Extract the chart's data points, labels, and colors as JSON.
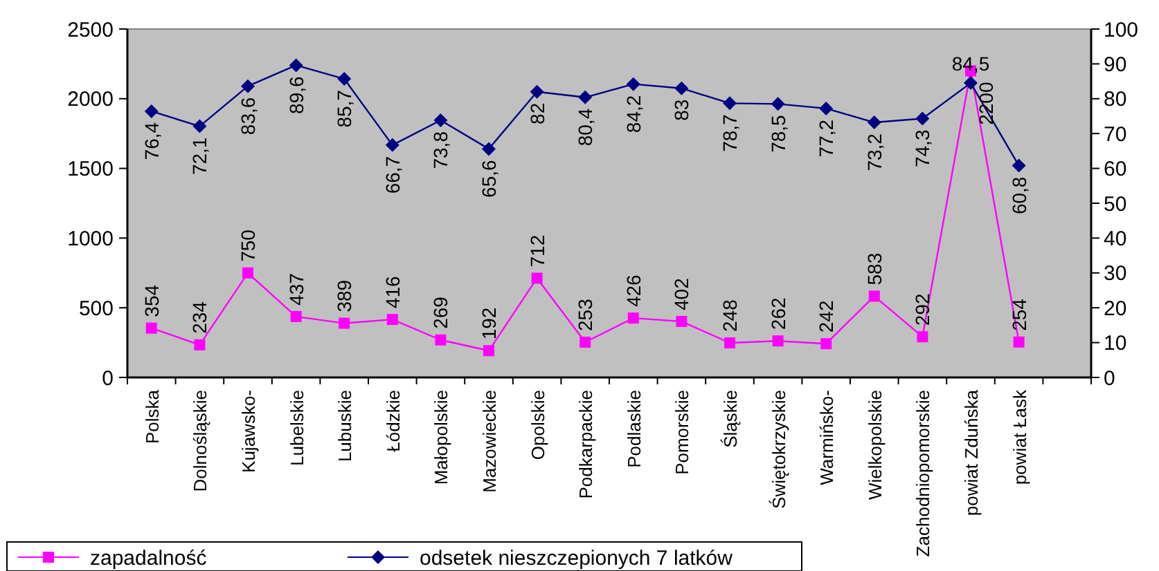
{
  "chart_data": {
    "type": "line",
    "categories": [
      "Polska",
      "Dolnośląskie",
      "Kujawsko-",
      "Lubelskie",
      "Lubuskie",
      "Łódzkie",
      "Małopolskie",
      "Mazowieckie",
      "Opolskie",
      "Podkarpackie",
      "Podlaskie",
      "Pomorskie",
      "Śląskie",
      "Świętokrzyskie",
      "Warmińsko-",
      "Wielkopolskie",
      "Zachodniopomorskie",
      "powiat Zduńska",
      "powiat Łask",
      null
    ],
    "series": [
      {
        "name": "zapadalność",
        "color": "#ff00ff",
        "marker": "square",
        "values": [
          354,
          234,
          750,
          437,
          389,
          416,
          269,
          192,
          712,
          253,
          426,
          402,
          248,
          262,
          242,
          583,
          292,
          2200,
          254,
          null
        ],
        "value_labels": [
          "354",
          "234",
          "750",
          "437",
          "389",
          "416",
          "269",
          "192",
          "712",
          "253",
          "426",
          "402",
          "248",
          "262",
          "242",
          "583",
          "292",
          "2200",
          "254",
          null
        ]
      },
      {
        "name": "odsetek nieszczepionych 7 latków",
        "color": "#000080",
        "marker": "diamond",
        "axis": "y2",
        "values": [
          76.4,
          72.1,
          83.6,
          89.6,
          85.7,
          66.7,
          73.8,
          65.6,
          82,
          80.4,
          84.2,
          83,
          78.7,
          78.5,
          77.2,
          73.2,
          74.3,
          84.5,
          60.8,
          null
        ],
        "value_labels": [
          "76,4",
          "72,1",
          "83,6",
          "89,6",
          "85,7",
          "66,7",
          "73,8",
          "65,6",
          "82",
          "80,4",
          "84,2",
          "83",
          "78,7",
          "78,5",
          "77,2",
          "73,2",
          "74,3",
          "84,5",
          "60,8",
          null
        ]
      }
    ],
    "ylim": [
      0,
      2500
    ],
    "yticks": [
      0,
      500,
      1000,
      1500,
      2000,
      2500
    ],
    "y2lim": [
      0,
      100
    ],
    "y2ticks": [
      0,
      10,
      20,
      30,
      40,
      50,
      60,
      70,
      80,
      90,
      100
    ],
    "grid": false,
    "legend": "bottom left"
  }
}
